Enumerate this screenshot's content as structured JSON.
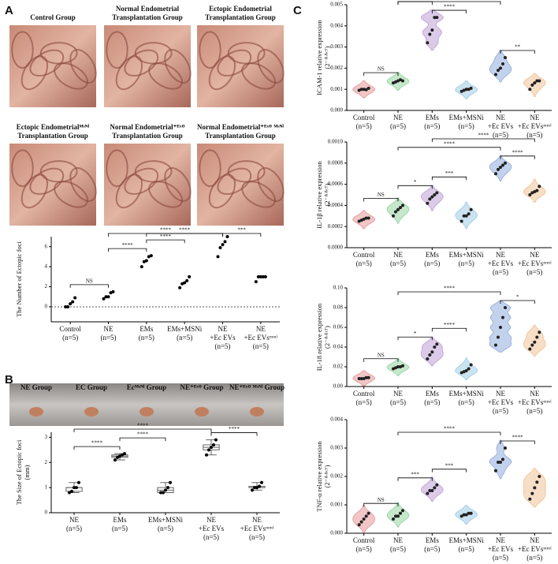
{
  "panel_labels": [
    "A",
    "B",
    "C"
  ],
  "photos_a": [
    {
      "caption": [
        "Control Group"
      ]
    },
    {
      "caption": [
        "Normal Endometrial",
        "Transplantation Group"
      ]
    },
    {
      "caption": [
        "Ectopic Endometrial",
        "Transplantation Group"
      ]
    },
    {
      "caption": [
        "Ectopic Endometrialᴹˢᴺⁱ",
        "Transplantation Group"
      ]
    },
    {
      "caption": [
        "Normal Endometrial⁺ᴱˣᴼ",
        "Transplantation Group"
      ]
    },
    {
      "caption": [
        "Normal Endometrial⁺ᴱˣᴼ ᴹˢᴺⁱ",
        "Transplantation Group"
      ]
    }
  ],
  "photos_b": [
    "NE Group",
    "EC Group",
    "Ecᴹˢᴺⁱ Group",
    "NE⁺ᴱˣᴼ Group",
    "NE⁺ᴱˣᴼ ᴹˢᴺⁱ Group"
  ],
  "chart_data": [
    {
      "type": "scatter",
      "ylabel": [
        "The Number of Ectopic foci"
      ],
      "zero_line": true,
      "categories": [
        [
          "Control",
          "(n=5)"
        ],
        [
          "NE",
          "(n=5)"
        ],
        [
          "EMs",
          "(n=5)"
        ],
        [
          "EMs+MSNi",
          "(n=5)"
        ],
        [
          "NE",
          "+Ec EVs",
          "(n=5)"
        ],
        [
          "NE",
          "+Ec EVsᵐᵐⁱ",
          "(n=5)"
        ]
      ],
      "points": [
        [
          0,
          0,
          0.3,
          0.5,
          0.9
        ],
        [
          0.8,
          1,
          1,
          1.4,
          1.5
        ],
        [
          4,
          4.5,
          4.6,
          5,
          5.1
        ],
        [
          1.9,
          2.3,
          2.4,
          2.6,
          3
        ],
        [
          5,
          5.9,
          6.2,
          6.5,
          7
        ],
        [
          2.5,
          3,
          3,
          3,
          3
        ]
      ],
      "colors": [
        "#000000",
        "#000000",
        "#000000",
        "#000000",
        "#000000",
        "#000000"
      ],
      "ylim": [
        -1.5,
        7
      ],
      "yticks": [
        0,
        2,
        4,
        6
      ],
      "comparisons": [
        {
          "pair": [
            0,
            1
          ],
          "label": "NS"
        },
        {
          "pair": [
            1,
            2
          ],
          "label": "****"
        },
        {
          "pair": [
            2,
            3
          ],
          "label": "****"
        },
        {
          "pair": [
            4,
            5
          ],
          "label": "***"
        },
        {
          "pair": [
            2,
            4
          ],
          "label": "****"
        },
        {
          "pair": [
            1,
            4
          ],
          "label": "****"
        }
      ]
    },
    {
      "type": "box",
      "ylabel": [
        "The Size of Ectopic foci",
        "(mm)"
      ],
      "categories": [
        [
          "NE",
          "(n=5)"
        ],
        [
          "EMs",
          "(n=5)"
        ],
        [
          "EMs+MSNi",
          "(n=5)"
        ],
        [
          "NE",
          "+Ec EVs",
          "(n=5)"
        ],
        [
          "NE",
          "+Ec EVsᵐᵐⁱ",
          "(n=5)"
        ]
      ],
      "points": [
        [
          0.8,
          0.85,
          1,
          1,
          1.2
        ],
        [
          2.1,
          2.2,
          2.25,
          2.3,
          2.35
        ],
        [
          0.8,
          0.8,
          0.9,
          1,
          1.2
        ],
        [
          2.3,
          2.5,
          2.6,
          2.7,
          2.9
        ],
        [
          0.9,
          1,
          1,
          1.05,
          1.2
        ]
      ],
      "colors": [
        "#888888",
        "#888888",
        "#888888",
        "#888888",
        "#888888"
      ],
      "ylim": [
        0,
        3.2
      ],
      "yticks": [
        0,
        1,
        2,
        3
      ],
      "comparisons": [
        {
          "pair": [
            0,
            1
          ],
          "label": "****"
        },
        {
          "pair": [
            1,
            2
          ],
          "label": "****"
        },
        {
          "pair": [
            3,
            4
          ],
          "label": "****"
        },
        {
          "pair": [
            0,
            3
          ],
          "label": "****"
        }
      ]
    },
    {
      "type": "violin",
      "ylabel": [
        "ICAM-1 relative expression",
        "(2⁻ᐞᐞᶜᵀ)"
      ],
      "categories": [
        [
          "Control",
          "(n=5)"
        ],
        [
          "NE",
          "(n=5)"
        ],
        [
          "EMs",
          "(n=5)"
        ],
        [
          "EMs+MSNi",
          "(n=5)"
        ],
        [
          "NE",
          "+Ec EVs",
          "(n=5)"
        ],
        [
          "NE",
          "+Ec EVsᵐᵐⁱ",
          "(n=5)"
        ]
      ],
      "points": [
        [
          0.00095,
          0.001,
          0.001,
          0.00098,
          0.00105
        ],
        [
          0.0013,
          0.00135,
          0.0014,
          0.00145,
          0.0014
        ],
        [
          0.0032,
          0.0036,
          0.0038,
          0.0044,
          0.0044
        ],
        [
          0.0009,
          0.00095,
          0.001,
          0.001,
          0.00105
        ],
        [
          0.0017,
          0.0019,
          0.002,
          0.0022,
          0.0025
        ],
        [
          0.001,
          0.0012,
          0.0013,
          0.0014,
          0.0014
        ]
      ],
      "colors": [
        "#e8a0a0",
        "#9fd8a8",
        "#c4a8d8",
        "#a8d0e8",
        "#9bb4e0",
        "#f2c8a0"
      ],
      "ylim": [
        0,
        0.005
      ],
      "yticks": [
        {
          "value": 0,
          "label": "0.000"
        },
        {
          "value": 0.001,
          "label": "0.001"
        },
        {
          "value": 0.002,
          "label": "0.002"
        },
        {
          "value": 0.003,
          "label": "0.003"
        },
        {
          "value": 0.004,
          "label": "0.004"
        },
        {
          "value": 0.005,
          "label": "0.005"
        }
      ],
      "comparisons": [
        {
          "pair": [
            0,
            1
          ],
          "label": "NS"
        },
        {
          "pair": [
            4,
            5
          ],
          "label": "**"
        },
        {
          "pair": [
            2,
            3
          ],
          "label": "****"
        },
        {
          "pair": [
            1,
            2
          ],
          "label": "****"
        },
        {
          "pair": [
            1,
            4
          ],
          "label": "*"
        }
      ]
    },
    {
      "type": "violin",
      "ylabel": [
        "IL-1β relative expression",
        "(2⁻ᐞᐞᶜᵀ)"
      ],
      "categories": [
        [
          "Control",
          "(n=5)"
        ],
        [
          "NE",
          "(n=5)"
        ],
        [
          "EMs",
          "(n=5)"
        ],
        [
          "EMs+MSNi",
          "(n=5)"
        ],
        [
          "NE",
          "+Ec EVs",
          "(n=5)"
        ],
        [
          "NE",
          "+Ec EVsᵐᵐⁱ",
          "(n=5)"
        ]
      ],
      "points": [
        [
          0.00025,
          0.00026,
          0.00027,
          0.00028,
          0.00028
        ],
        [
          0.0003,
          0.00034,
          0.00036,
          0.00038,
          0.0004
        ],
        [
          0.00042,
          0.00046,
          0.00048,
          0.0005,
          0.00052
        ],
        [
          0.00025,
          0.0003,
          0.0003,
          0.00032,
          0.00036
        ],
        [
          0.0007,
          0.00074,
          0.00076,
          0.00078,
          0.0008
        ],
        [
          0.0005,
          0.00052,
          0.00053,
          0.00054,
          0.00058
        ]
      ],
      "colors": [
        "#e8a0a0",
        "#9fd8a8",
        "#c4a8d8",
        "#a8d0e8",
        "#9bb4e0",
        "#f2c8a0"
      ],
      "ylim": [
        0,
        0.001
      ],
      "yticks": [
        {
          "value": 0,
          "label": "0.0000"
        },
        {
          "value": 0.0002,
          "label": "0.0002"
        },
        {
          "value": 0.0004,
          "label": "0.0004"
        },
        {
          "value": 0.0006,
          "label": "0.0006"
        },
        {
          "value": 0.0008,
          "label": "0.0008"
        },
        {
          "value": 0.001,
          "label": "0.0010"
        }
      ],
      "comparisons": [
        {
          "pair": [
            0,
            1
          ],
          "label": "NS"
        },
        {
          "pair": [
            1,
            2
          ],
          "label": "*"
        },
        {
          "pair": [
            2,
            3
          ],
          "label": "***"
        },
        {
          "pair": [
            4,
            5
          ],
          "label": "****"
        },
        {
          "pair": [
            1,
            4
          ],
          "label": "****"
        },
        {
          "pair": [
            2,
            5
          ],
          "label": "****"
        }
      ]
    },
    {
      "type": "violin",
      "ylabel": [
        "IL-18 relative expression",
        "(2⁻ᐞᐞᶜᵀ)"
      ],
      "categories": [
        [
          "Control",
          "(n=5)"
        ],
        [
          "NE",
          "(n=5)"
        ],
        [
          "EMs",
          "(n=5)"
        ],
        [
          "EMs+MSNi",
          "(n=5)"
        ],
        [
          "NE",
          "+Ec EVs",
          "(n=5)"
        ],
        [
          "NE",
          "+Ec EVsᵐᵐⁱ",
          "(n=5)"
        ]
      ],
      "points": [
        [
          0.008,
          0.008,
          0.008,
          0.009,
          0.009
        ],
        [
          0.018,
          0.019,
          0.02,
          0.02,
          0.021
        ],
        [
          0.028,
          0.032,
          0.035,
          0.04,
          0.043
        ],
        [
          0.014,
          0.015,
          0.016,
          0.018,
          0.022
        ],
        [
          0.042,
          0.05,
          0.06,
          0.07,
          0.08
        ],
        [
          0.038,
          0.042,
          0.045,
          0.05,
          0.055
        ]
      ],
      "colors": [
        "#e8a0a0",
        "#9fd8a8",
        "#c4a8d8",
        "#a8d0e8",
        "#9bb4e0",
        "#f2c8a0"
      ],
      "ylim": [
        0,
        0.1
      ],
      "yticks": [
        {
          "value": 0,
          "label": "0.00"
        },
        {
          "value": 0.02,
          "label": "0.02"
        },
        {
          "value": 0.04,
          "label": "0.04"
        },
        {
          "value": 0.06,
          "label": "0.06"
        },
        {
          "value": 0.08,
          "label": "0.08"
        },
        {
          "value": 0.1,
          "label": "0.10"
        }
      ],
      "comparisons": [
        {
          "pair": [
            0,
            1
          ],
          "label": "NS"
        },
        {
          "pair": [
            1,
            2
          ],
          "label": "*"
        },
        {
          "pair": [
            2,
            3
          ],
          "label": "****"
        },
        {
          "pair": [
            4,
            5
          ],
          "label": "*"
        },
        {
          "pair": [
            1,
            4
          ],
          "label": "****"
        }
      ]
    },
    {
      "type": "violin",
      "ylabel": [
        "TNF-α relative expression",
        "(2⁻ᐞᐞᶜᵀ)"
      ],
      "categories": [
        [
          "Control",
          "(n=5)"
        ],
        [
          "NE",
          "(n=5)"
        ],
        [
          "EMs",
          "(n=5)"
        ],
        [
          "EMs+MSNi",
          "(n=5)"
        ],
        [
          "NE",
          "+Ec EVs",
          "(n=5)"
        ],
        [
          "NE",
          "+Ec EVsᵐᵐⁱ",
          "(n=5)"
        ]
      ],
      "points": [
        [
          0.0003,
          0.0004,
          0.0005,
          0.0006,
          0.0007
        ],
        [
          0.0005,
          0.0006,
          0.0006,
          0.0007,
          0.0008
        ],
        [
          0.0014,
          0.0015,
          0.0015,
          0.0016,
          0.0017
        ],
        [
          0.0006,
          0.00065,
          0.00065,
          0.0007,
          0.0007
        ],
        [
          0.0022,
          0.0025,
          0.0025,
          0.0026,
          0.003
        ],
        [
          0.0012,
          0.0014,
          0.0016,
          0.0018,
          0.002
        ]
      ],
      "colors": [
        "#e8a0a0",
        "#9fd8a8",
        "#c4a8d8",
        "#a8d0e8",
        "#9bb4e0",
        "#f2c8a0"
      ],
      "ylim": [
        0,
        0.004
      ],
      "yticks": [
        {
          "value": 0,
          "label": "0.000"
        },
        {
          "value": 0.001,
          "label": "0.001"
        },
        {
          "value": 0.002,
          "label": "0.002"
        },
        {
          "value": 0.003,
          "label": "0.003"
        },
        {
          "value": 0.004,
          "label": "0.004"
        }
      ],
      "comparisons": [
        {
          "pair": [
            0,
            1
          ],
          "label": "NS"
        },
        {
          "pair": [
            1,
            2
          ],
          "label": "***"
        },
        {
          "pair": [
            2,
            3
          ],
          "label": "***"
        },
        {
          "pair": [
            4,
            5
          ],
          "label": "****"
        },
        {
          "pair": [
            1,
            4
          ],
          "label": "****"
        }
      ]
    }
  ]
}
